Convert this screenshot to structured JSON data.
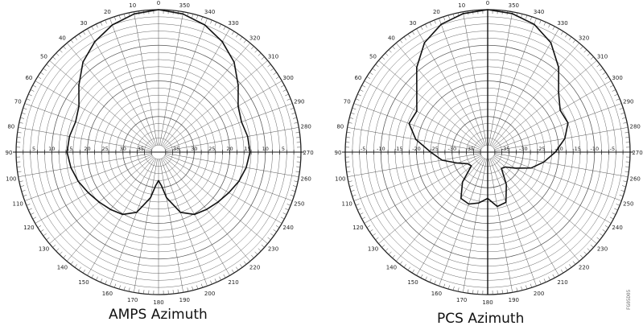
{
  "chart_data": [
    {
      "type": "polar-line",
      "title": "AMPS Azimuth",
      "angular_ticks": [
        "0",
        "350",
        "340",
        "330",
        "320",
        "310",
        "300",
        "290",
        "280",
        "270",
        "260",
        "250",
        "240",
        "230",
        "220",
        "210",
        "200",
        "190",
        "180",
        "170",
        "160",
        "150",
        "140",
        "130",
        "120",
        "110",
        "100",
        "90",
        "80",
        "70",
        "60",
        "50",
        "40",
        "30",
        "20",
        "10"
      ],
      "radial_ticks": [
        "5",
        "10",
        "15",
        "20",
        "25",
        "30",
        "35"
      ],
      "series": [
        {
          "theta": [
            0,
            10,
            20,
            30,
            40,
            50,
            60,
            70,
            80,
            90,
            100,
            110,
            120,
            130,
            140,
            150,
            160,
            170,
            175,
            180,
            185,
            190,
            200,
            210,
            220,
            230,
            240,
            250,
            260,
            270,
            280,
            290,
            300,
            310,
            320,
            330,
            340,
            350
          ],
          "r": [
            0,
            0.6,
            2.0,
            4.2,
            7.0,
            10.8,
            14.2,
            15.2,
            14.6,
            14.3,
            15.0,
            16.0,
            17.2,
            18.2,
            19.0,
            19.8,
            22.0,
            27.0,
            30.5,
            32.0,
            30.5,
            27.0,
            22.0,
            19.8,
            19.0,
            18.2,
            17.2,
            16.0,
            15.0,
            14.3,
            14.6,
            15.2,
            14.2,
            10.8,
            7.0,
            4.2,
            2.0,
            0.6
          ]
        }
      ]
    },
    {
      "type": "polar-line",
      "title": "PCS Azimuth",
      "angular_ticks": [
        "0",
        "350",
        "340",
        "330",
        "320",
        "310",
        "300",
        "290",
        "280",
        "270",
        "260",
        "250",
        "240",
        "230",
        "220",
        "210",
        "200",
        "190",
        "180",
        "170",
        "160",
        "150",
        "140",
        "130",
        "120",
        "110",
        "100",
        "90",
        "80",
        "70",
        "60",
        "50",
        "40",
        "30",
        "20",
        "10"
      ],
      "radial_ticks": [
        "-5",
        "-10",
        "-15",
        "-20",
        "-25",
        "-30",
        "-35"
      ],
      "series": [
        {
          "theta": [
            0,
            10,
            20,
            30,
            40,
            50,
            60,
            70,
            80,
            90,
            100,
            110,
            120,
            130,
            140,
            150,
            160,
            170,
            180,
            190,
            200,
            210,
            220,
            230,
            240,
            250,
            260,
            270,
            280,
            290,
            300,
            310,
            320,
            330,
            340,
            350
          ],
          "r": [
            0,
            0.5,
            1.8,
            4.5,
            9.0,
            14.0,
            17.0,
            16.5,
            19.5,
            24.0,
            27.0,
            31.0,
            33.5,
            34.0,
            29.0,
            25.0,
            24.5,
            25.5,
            27.0,
            24.5,
            25.0,
            29.5,
            34.0,
            33.5,
            31.0,
            27.0,
            24.0,
            21.0,
            18.0,
            16.0,
            16.5,
            14.0,
            9.0,
            4.5,
            1.8,
            0.5
          ]
        }
      ]
    }
  ],
  "captions": {
    "left": "AMPS Azimuth",
    "right": "PCS Azimuth"
  },
  "side_note": "FG05D05"
}
